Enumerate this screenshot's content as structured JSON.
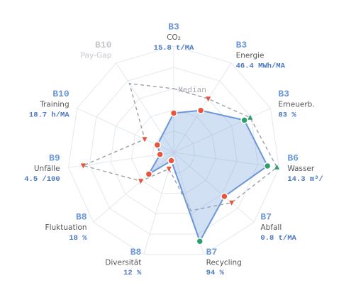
{
  "chart_data": {
    "type": "radar",
    "axes": [
      {
        "code": "B3",
        "name": "CO₂",
        "metric": "15.8 t/MA"
      },
      {
        "code": "B3",
        "name": "Energie",
        "metric": "46.4 MWh/MA"
      },
      {
        "code": "B3",
        "name": "Erneuerb.",
        "metric": "83 %"
      },
      {
        "code": "B6",
        "name": "Wasser",
        "metric": "14.3 m³/"
      },
      {
        "code": "B7",
        "name": "Abfall",
        "metric": "0.8 t/MA"
      },
      {
        "code": "B7",
        "name": "Recycling",
        "metric": "94 %"
      },
      {
        "code": "B8",
        "name": "Diversität",
        "metric": "12 %"
      },
      {
        "code": "B8",
        "name": "Fluktuation",
        "metric": "18 %"
      },
      {
        "code": "B9",
        "name": "Unfälle",
        "metric": "4.5 /100"
      },
      {
        "code": "B10",
        "name": "Training",
        "metric": "18.7 h/MA"
      },
      {
        "code": "B10",
        "name": "Pay-Gap",
        "metric": null
      }
    ],
    "rlim": [
      0,
      100
    ],
    "rticks": [
      20,
      40,
      60,
      80,
      100
    ],
    "series": [
      {
        "name": "Median",
        "color": "#9aa0aa",
        "values": [
          60,
          60,
          79,
          98,
          72,
          57,
          16,
          41,
          86,
          30,
          77
        ],
        "marker_colors": [
          null,
          "#e8553a",
          "#2e9e6a",
          "#2e9e6a",
          "#e8553a",
          null,
          "#e8553a",
          "#e8553a",
          "#e8553a",
          "#e8553a",
          null
        ]
      },
      {
        "color": "#6b97d8",
        "values": [
          37,
          47,
          73,
          89,
          63,
          87,
          8,
          31,
          13,
          17,
          null
        ],
        "marker_colors": [
          "#e8553a",
          "#e8553a",
          "#2e9e6a",
          "#2e9e6a",
          "#e8553a",
          "#2e9e6a",
          "#e8553a",
          "#e8553a",
          "#e8553a",
          "#e8553a",
          null
        ]
      }
    ]
  }
}
